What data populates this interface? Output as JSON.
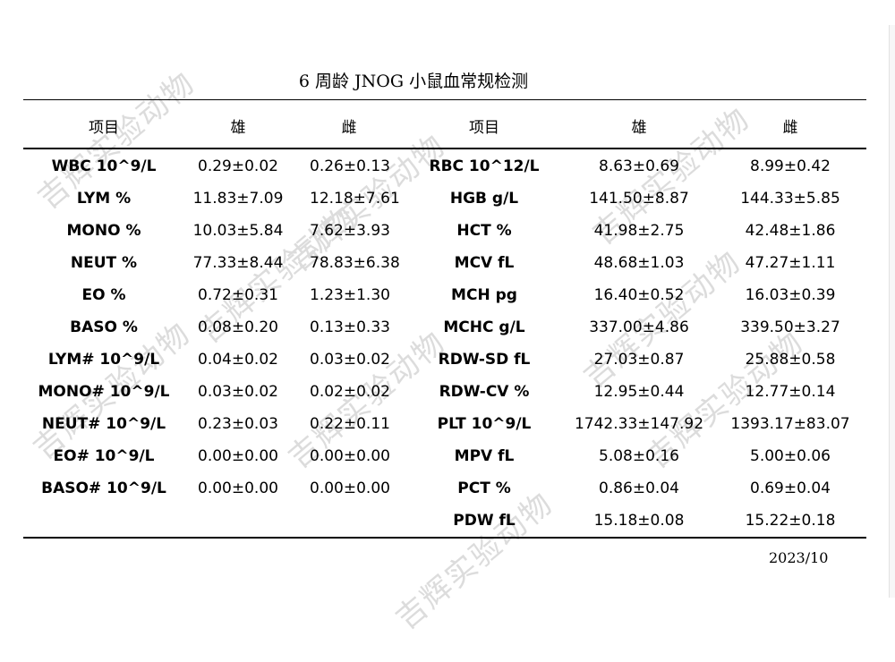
{
  "title": "6 周龄 JNOG 小鼠血常规检测",
  "headers": [
    "项目",
    "雄",
    "雌",
    "项目",
    "雄",
    "雌"
  ],
  "rows": [
    {
      "l_item": "WBC 10^9/L",
      "l_m": "0.29±0.02",
      "l_f": "0.26±0.13",
      "r_item": "RBC 10^12/L",
      "r_m": "8.63±0.69",
      "r_f": "8.99±0.42"
    },
    {
      "l_item": "LYM %",
      "l_m": "11.83±7.09",
      "l_f": "12.18±7.61",
      "r_item": "HGB g/L",
      "r_m": "141.50±8.87",
      "r_f": "144.33±5.85"
    },
    {
      "l_item": "MONO %",
      "l_m": "10.03±5.84",
      "l_f": "7.62±3.93",
      "r_item": "HCT %",
      "r_m": "41.98±2.75",
      "r_f": "42.48±1.86"
    },
    {
      "l_item": "NEUT %",
      "l_m": "77.33±8.44",
      "l_f": "78.83±6.38",
      "r_item": "MCV fL",
      "r_m": "48.68±1.03",
      "r_f": "47.27±1.11"
    },
    {
      "l_item": "EO %",
      "l_m": "0.72±0.31",
      "l_f": "1.23±1.30",
      "r_item": "MCH pg",
      "r_m": "16.40±0.52",
      "r_f": "16.03±0.39"
    },
    {
      "l_item": "BASO %",
      "l_m": "0.08±0.20",
      "l_f": "0.13±0.33",
      "r_item": "MCHC g/L",
      "r_m": "337.00±4.86",
      "r_f": "339.50±3.27"
    },
    {
      "l_item": "LYM# 10^9/L",
      "l_m": "0.04±0.02",
      "l_f": "0.03±0.02",
      "r_item": "RDW-SD fL",
      "r_m": "27.03±0.87",
      "r_f": "25.88±0.58"
    },
    {
      "l_item": "MONO# 10^9/L",
      "l_m": "0.03±0.02",
      "l_f": "0.02±0.02",
      "r_item": "RDW-CV %",
      "r_m": "12.95±0.44",
      "r_f": "12.77±0.14"
    },
    {
      "l_item": "NEUT# 10^9/L",
      "l_m": "0.23±0.03",
      "l_f": "0.22±0.11",
      "r_item": "PLT 10^9/L",
      "r_m": "1742.33±147.92",
      "r_f": "1393.17±83.07"
    },
    {
      "l_item": "EO# 10^9/L",
      "l_m": "0.00±0.00",
      "l_f": "0.00±0.00",
      "r_item": "MPV fL",
      "r_m": "5.08±0.16",
      "r_f": "5.00±0.06"
    },
    {
      "l_item": "BASO# 10^9/L",
      "l_m": "0.00±0.00",
      "l_f": "0.00±0.00",
      "r_item": "PCT %",
      "r_m": "0.86±0.04",
      "r_f": "0.69±0.04"
    },
    {
      "l_item": "",
      "l_m": "",
      "l_f": "",
      "r_item": "PDW fL",
      "r_m": "15.18±0.08",
      "r_f": "15.22±0.18"
    }
  ],
  "date": "2023/10",
  "watermark": "吉辉实验动物"
}
